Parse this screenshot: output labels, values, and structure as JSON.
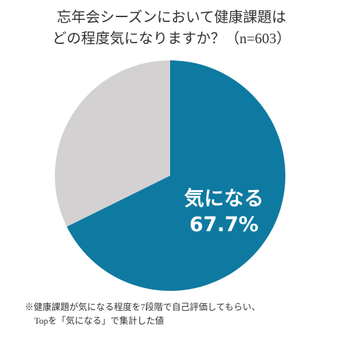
{
  "chart_data": {
    "type": "pie",
    "title": [
      "忘年会シーズンにおいて健康課題は",
      "どの程度気になりますか？（n=603）"
    ],
    "categories": [
      "気になる",
      null
    ],
    "values": [
      67.7,
      32.3
    ],
    "value_labels": [
      "67.7%",
      null
    ],
    "colors": [
      "#0f7aa1",
      "#d4d1d2"
    ],
    "note": [
      "※健康課題が気になる程度を7段階で自己評価してもらい、",
      "Topを「気になる」で集計した値"
    ]
  }
}
